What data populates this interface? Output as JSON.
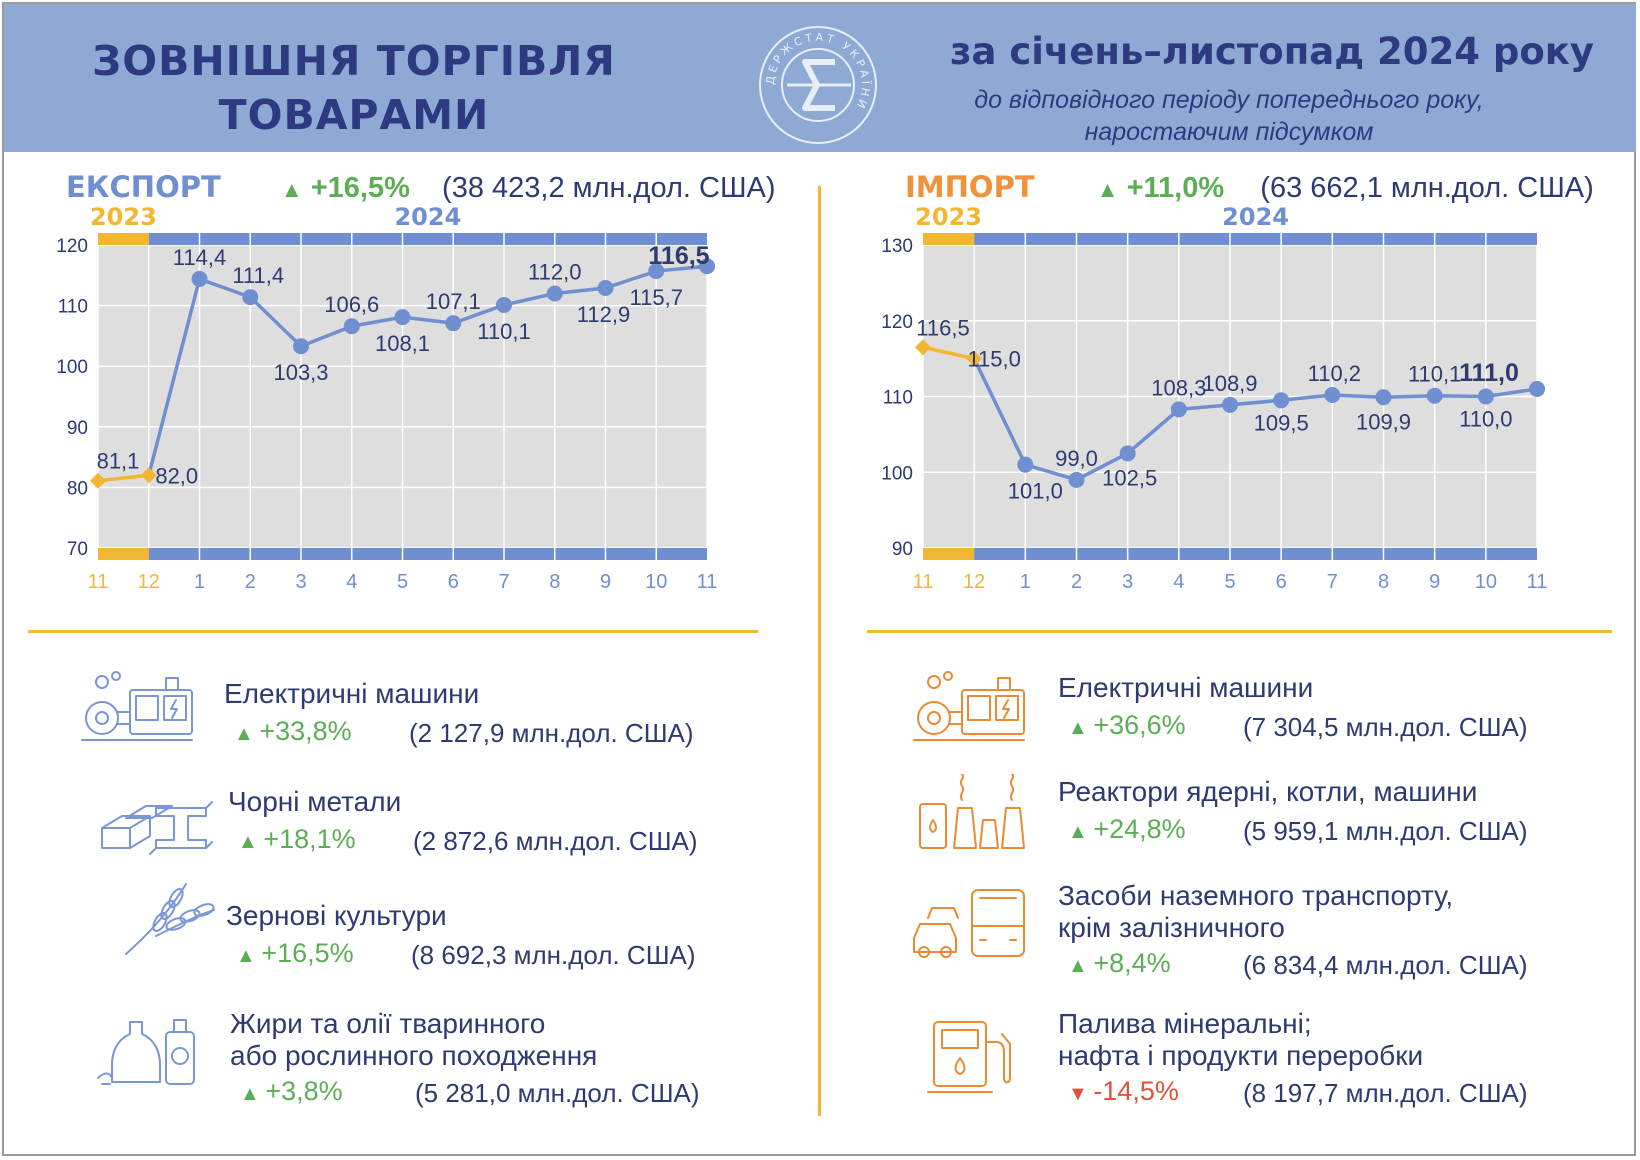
{
  "header": {
    "title_line1": "ЗОВНІШНЯ ТОРГІВЛЯ",
    "title_line2": "ТОВАРАМИ",
    "logo_text": "ДЕРЖСТАТ УКРАЇНИ",
    "period": "за січень–листопад 2024 року",
    "subtitle_line1": "до відповідного періоду попереднього року,",
    "subtitle_line2": "наростаючим підсумком"
  },
  "colors": {
    "header_bg": "#8eaad4",
    "title": "#2e3a80",
    "export_accent": "#6f8fd0",
    "import_accent": "#f0923a",
    "year2023": "#f2b631",
    "year2024": "#6f8fd0",
    "up": "#5cae55",
    "down": "#e0523c",
    "plot_bg": "#dedede"
  },
  "export": {
    "label": "ЕКСПОРТ",
    "change_icon": "triangle-up",
    "change": "+16,5%",
    "amount": "(38 423,2 млн.дол. США)",
    "items": [
      {
        "icon": "electric-machine-icon",
        "name_line1": "Електричні машини",
        "name_line2": "",
        "direction": "up",
        "change": "+33,8%",
        "amount": "(2 127,9 млн.дол. США)"
      },
      {
        "icon": "ferrous-metals-icon",
        "name_line1": "Чорні метали",
        "name_line2": "",
        "direction": "up",
        "change": "+18,1%",
        "amount": "(2 872,6 млн.дол. США)"
      },
      {
        "icon": "wheat-icon",
        "name_line1": "Зернові культури",
        "name_line2": "",
        "direction": "up",
        "change": "+16,5%",
        "amount": "(8 692,3 млн.дол. США)"
      },
      {
        "icon": "oil-bottles-icon",
        "name_line1": "Жири та олії тваринного",
        "name_line2": "або рослинного походження",
        "direction": "up",
        "change": "+3,8%",
        "amount": "(5 281,0 млн.дол. США)"
      }
    ]
  },
  "import": {
    "label": "ІМПОРТ",
    "change_icon": "triangle-up",
    "change": "+11,0%",
    "amount": "(63 662,1 млн.дол. США)",
    "items": [
      {
        "icon": "electric-machine-icon",
        "name_line1": "Електричні машини",
        "name_line2": "",
        "direction": "up",
        "change": "+36,6%",
        "amount": "(7 304,5 млн.дол. США)"
      },
      {
        "icon": "power-plant-icon",
        "name_line1": "Реактори ядерні, котли, машини",
        "name_line2": "",
        "direction": "up",
        "change": "+24,8%",
        "amount": "(5 959,1 млн.дол. США)"
      },
      {
        "icon": "vehicles-icon",
        "name_line1": "Засоби наземного транспорту,",
        "name_line2": "крім залізничного",
        "direction": "up",
        "change": "+8,4%",
        "amount": "(6 834,4 млн.дол. США)"
      },
      {
        "icon": "fuel-pump-icon",
        "name_line1": "Палива мінеральні;",
        "name_line2": "нафта і продукти переробки",
        "direction": "down",
        "change": "-14,5%",
        "amount": "(8 197,7 млн.дол. США)"
      }
    ]
  },
  "chart_data": [
    {
      "type": "line",
      "year_labels": [
        "2023",
        "2024"
      ],
      "x": [
        "11",
        "12",
        "1",
        "2",
        "3",
        "4",
        "5",
        "6",
        "7",
        "8",
        "9",
        "10",
        "11"
      ],
      "ylim": [
        70,
        120
      ],
      "yticks": [
        70,
        80,
        90,
        100,
        110,
        120
      ],
      "series": [
        {
          "year": "2023",
          "x": [
            "11",
            "12"
          ],
          "values": [
            81.1,
            82.0
          ]
        },
        {
          "year": "2024",
          "x": [
            "12",
            "1",
            "2",
            "3",
            "4",
            "5",
            "6",
            "7",
            "8",
            "9",
            "10",
            "11"
          ],
          "values": [
            82.0,
            114.4,
            111.4,
            103.3,
            106.6,
            108.1,
            107.1,
            110.1,
            112.0,
            112.9,
            115.7,
            116.5
          ]
        }
      ],
      "labels": [
        "81,1",
        "82,0",
        "114,4",
        "111,4",
        "103,3",
        "106,6",
        "108,1",
        "107,1",
        "110,1",
        "112,0",
        "112,9",
        "115,7",
        "116,5"
      ],
      "grid": true,
      "legend": "none"
    },
    {
      "type": "line",
      "year_labels": [
        "2023",
        "2024"
      ],
      "x": [
        "11",
        "12",
        "1",
        "2",
        "3",
        "4",
        "5",
        "6",
        "7",
        "8",
        "9",
        "10",
        "11"
      ],
      "ylim": [
        90,
        130
      ],
      "yticks": [
        90,
        100,
        110,
        120,
        130
      ],
      "series": [
        {
          "year": "2023",
          "x": [
            "11",
            "12"
          ],
          "values": [
            116.5,
            115.0
          ]
        },
        {
          "year": "2024",
          "x": [
            "12",
            "1",
            "2",
            "3",
            "4",
            "5",
            "6",
            "7",
            "8",
            "9",
            "10",
            "11"
          ],
          "values": [
            115.0,
            101.0,
            99.0,
            102.5,
            108.3,
            108.9,
            109.5,
            110.2,
            109.9,
            110.1,
            110.0,
            111.0
          ]
        }
      ],
      "labels": [
        "116,5",
        "115,0",
        "101,0",
        "99,0",
        "102,5",
        "108,3",
        "108,9",
        "109,5",
        "110,2",
        "109,9",
        "110,1",
        "110,0",
        "111,0"
      ],
      "grid": true,
      "legend": "none"
    }
  ]
}
